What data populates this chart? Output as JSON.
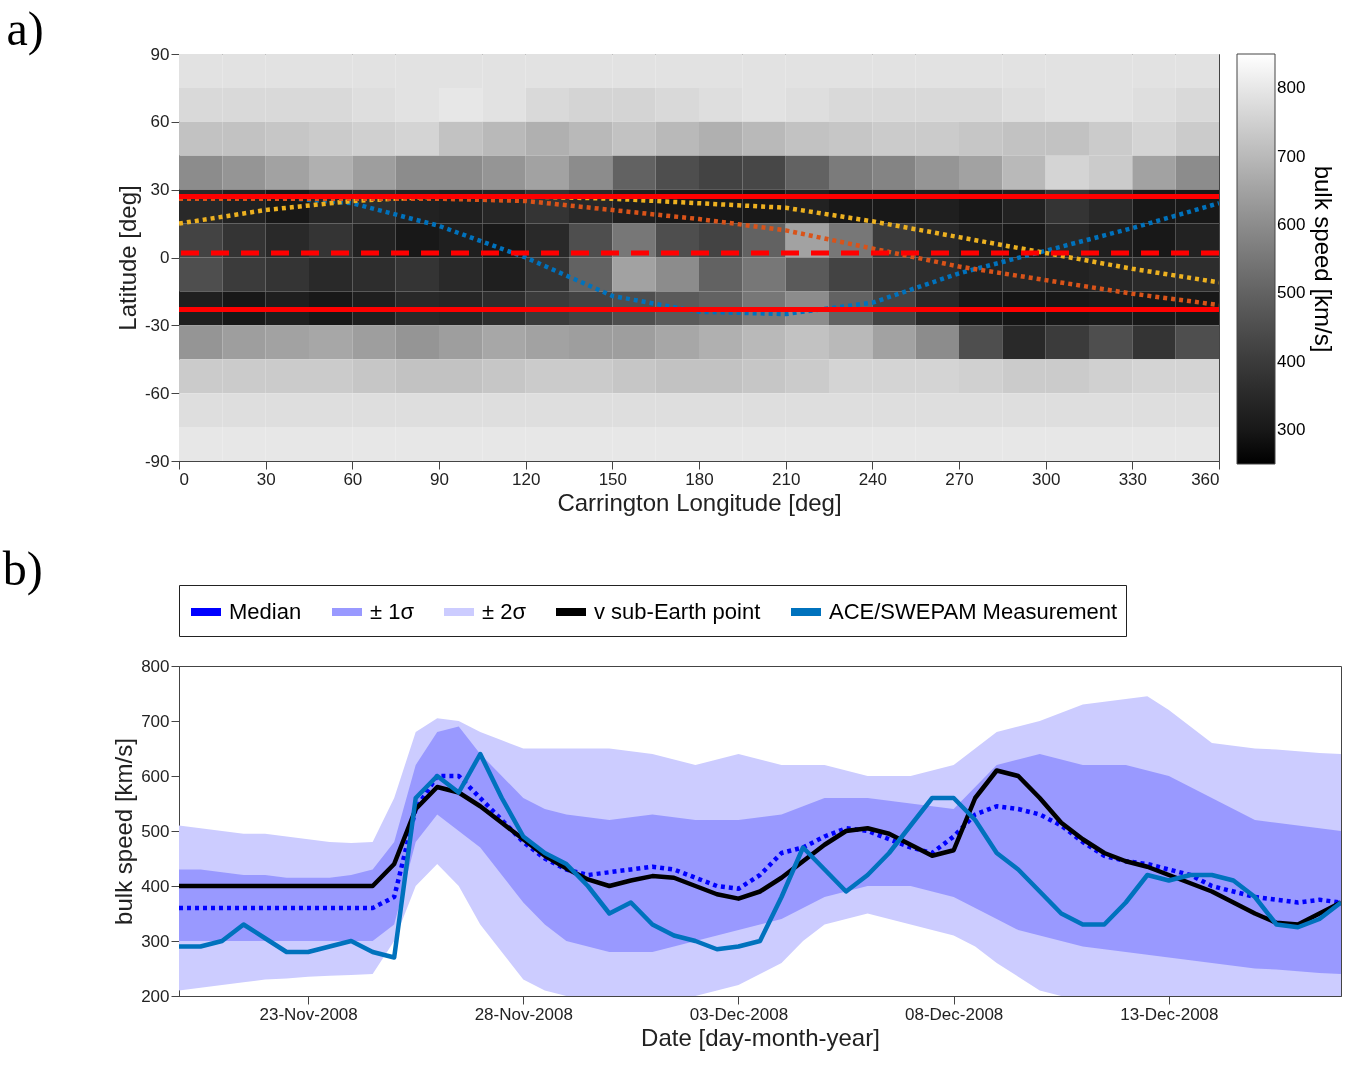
{
  "chart_data": [
    {
      "type": "heatmap",
      "clabel": "bulk speed [km/s]",
      "categories": [
        null,
        null,
        null,
        null,
        null,
        null,
        null,
        null,
        null,
        null,
        null,
        null,
        null,
        null,
        null,
        null,
        null,
        null,
        null,
        null,
        null,
        null,
        null,
        null
      ],
      "y_categories": [
        null,
        null,
        null,
        null,
        null,
        null,
        null,
        null,
        null,
        null,
        null,
        null
      ],
      "cells": [
        [
          790,
          790,
          790,
          790,
          790,
          790,
          790,
          790,
          790,
          790,
          790,
          790,
          790,
          790,
          790,
          790,
          790,
          790,
          790,
          790,
          790,
          790,
          790,
          790
        ],
        [
          770,
          770,
          770,
          770,
          780,
          790,
          800,
          790,
          770,
          760,
          760,
          770,
          780,
          790,
          780,
          770,
          770,
          770,
          770,
          780,
          790,
          790,
          780,
          770
        ],
        [
          720,
          720,
          730,
          740,
          750,
          760,
          720,
          700,
          680,
          700,
          720,
          700,
          680,
          700,
          720,
          730,
          740,
          740,
          730,
          720,
          720,
          740,
          760,
          740
        ],
        [
          600,
          620,
          650,
          680,
          640,
          600,
          600,
          620,
          650,
          600,
          500,
          450,
          420,
          430,
          500,
          560,
          580,
          620,
          650,
          700,
          760,
          740,
          650,
          600
        ],
        [
          350,
          330,
          300,
          340,
          360,
          330,
          320,
          340,
          380,
          350,
          320,
          300,
          300,
          300,
          330,
          300,
          300,
          320,
          300,
          330,
          380,
          350,
          300,
          300
        ],
        [
          420,
          380,
          350,
          380,
          330,
          300,
          320,
          300,
          350,
          450,
          550,
          450,
          420,
          500,
          650,
          550,
          400,
          350,
          320,
          300,
          350,
          320,
          300,
          330
        ],
        [
          450,
          400,
          380,
          350,
          360,
          380,
          350,
          320,
          380,
          500,
          650,
          600,
          500,
          550,
          480,
          420,
          380,
          360,
          330,
          340,
          330,
          340,
          350,
          360
        ],
        [
          320,
          300,
          320,
          300,
          320,
          350,
          340,
          360,
          400,
          420,
          450,
          480,
          500,
          550,
          600,
          500,
          420,
          350,
          300,
          290,
          300,
          310,
          300,
          300
        ],
        [
          620,
          640,
          650,
          660,
          640,
          620,
          640,
          660,
          650,
          640,
          640,
          660,
          680,
          700,
          720,
          700,
          650,
          600,
          450,
          350,
          400,
          450,
          380,
          450
        ],
        [
          740,
          740,
          740,
          740,
          730,
          720,
          720,
          730,
          740,
          740,
          730,
          720,
          720,
          730,
          740,
          760,
          760,
          760,
          750,
          740,
          740,
          750,
          760,
          760
        ],
        [
          780,
          780,
          780,
          780,
          780,
          780,
          780,
          780,
          780,
          780,
          780,
          780,
          780,
          780,
          780,
          780,
          780,
          780,
          780,
          780,
          780,
          780,
          780,
          780
        ],
        [
          800,
          800,
          800,
          800,
          800,
          800,
          800,
          800,
          800,
          800,
          800,
          800,
          800,
          800,
          800,
          800,
          800,
          800,
          800,
          800,
          800,
          800,
          800,
          800
        ]
      ],
      "clim": [
        250,
        850
      ],
      "cticks": [
        300,
        400,
        500,
        600,
        700,
        800
      ]
    },
    {
      "type": "line",
      "title": "a)",
      "xlabel": "Carrington Longitude [deg]",
      "ylabel": "Latitude [deg]",
      "xlim": [
        0,
        360
      ],
      "xticks": [
        0,
        30,
        60,
        90,
        120,
        150,
        180,
        210,
        240,
        270,
        300,
        330,
        360
      ],
      "ylim": [
        -90,
        90
      ],
      "yticks": [
        -90,
        -60,
        -30,
        0,
        30,
        60,
        90
      ],
      "x": [
        0,
        30,
        60,
        90,
        120,
        150,
        180,
        210,
        240,
        270,
        300,
        330,
        360
      ],
      "series": [
        {
          "type": "line",
          "color": "#0072bd",
          "line_style": "dotted",
          "values": [
            27,
            27,
            24,
            14,
            0,
            -17,
            -24,
            -25,
            -20,
            -7,
            3,
            13,
            24
          ]
        },
        {
          "type": "line",
          "color": "#edb120",
          "line_style": "dotted",
          "values": [
            15,
            21,
            25,
            27,
            27,
            26,
            24,
            22,
            16,
            9,
            2,
            -5,
            -11
          ]
        },
        {
          "type": "line",
          "color": "#d95319",
          "line_style": "dotted",
          "values": [
            26,
            26,
            26,
            26,
            25,
            21,
            17,
            12,
            4,
            -4,
            -10,
            -16,
            -21
          ]
        }
      ],
      "ref_lines": [
        {
          "axis": "y",
          "value": 27,
          "color": "#ff0000",
          "line_style": "solid"
        },
        {
          "axis": "y",
          "value": 2,
          "color": "#ff0000",
          "line_style": "dashed"
        },
        {
          "axis": "y",
          "value": -23,
          "color": "#ff0000",
          "line_style": "solid"
        }
      ]
    },
    {
      "type": "line",
      "title": "b)",
      "xlabel": "Date [day-month-year]",
      "ylabel": "bulk speed [km/s]",
      "legend": "top",
      "x": [
        "2008-11-20T00:00",
        "2008-11-20T12:00",
        "2008-11-21T00:00",
        "2008-11-21T12:00",
        "2008-11-22T00:00",
        "2008-11-22T12:00",
        "2008-11-23T00:00",
        "2008-11-23T12:00",
        "2008-11-24T00:00",
        "2008-11-24T12:00",
        "2008-11-25T00:00",
        "2008-11-25T12:00",
        "2008-11-26T00:00",
        "2008-11-26T12:00",
        "2008-11-27T00:00",
        "2008-11-27T12:00",
        "2008-11-28T00:00",
        "2008-11-28T12:00",
        "2008-11-29T00:00",
        "2008-11-29T12:00",
        "2008-11-30T00:00",
        "2008-11-30T12:00",
        "2008-12-01T00:00",
        "2008-12-01T12:00",
        "2008-12-02T00:00",
        "2008-12-02T12:00",
        "2008-12-03T00:00",
        "2008-12-03T12:00",
        "2008-12-04T00:00",
        "2008-12-04T12:00",
        "2008-12-05T00:00",
        "2008-12-05T12:00",
        "2008-12-06T00:00",
        "2008-12-06T12:00",
        "2008-12-07T00:00",
        "2008-12-07T12:00",
        "2008-12-08T00:00",
        "2008-12-08T12:00",
        "2008-12-09T00:00",
        "2008-12-09T12:00",
        "2008-12-10T00:00",
        "2008-12-10T12:00",
        "2008-12-11T00:00",
        "2008-12-11T12:00",
        "2008-12-12T00:00",
        "2008-12-12T12:00",
        "2008-12-13T00:00",
        "2008-12-13T12:00",
        "2008-12-14T00:00",
        "2008-12-14T12:00",
        "2008-12-15T00:00",
        "2008-12-15T12:00",
        "2008-12-16T00:00",
        "2008-12-16T12:00",
        "2008-12-17T00:00"
      ],
      "xlim": [
        "2008-11-20T00:00",
        "2008-12-17T00:00"
      ],
      "xticks": [
        {
          "value": "2008-11-23T00:00",
          "label": "23-Nov-2008"
        },
        {
          "value": "2008-11-28T00:00",
          "label": "28-Nov-2008"
        },
        {
          "value": "2008-12-03T00:00",
          "label": "03-Dec-2008"
        },
        {
          "value": "2008-12-08T00:00",
          "label": "08-Dec-2008"
        },
        {
          "value": "2008-12-13T00:00",
          "label": "13-Dec-2008"
        }
      ],
      "ylim": [
        200,
        800
      ],
      "yticks": [
        200,
        300,
        400,
        500,
        600,
        700,
        800
      ],
      "series": [
        {
          "name": "Median",
          "type": "line",
          "color": "#0000ff",
          "line_style": "dotted",
          "values": [
            360,
            360,
            360,
            360,
            360,
            360,
            360,
            360,
            360,
            360,
            380,
            540,
            600,
            600,
            560,
            520,
            480,
            450,
            430,
            420,
            425,
            430,
            435,
            430,
            415,
            400,
            395,
            420,
            460,
            470,
            490,
            505,
            500,
            485,
            470,
            460,
            490,
            530,
            545,
            540,
            530,
            510,
            480,
            455,
            445,
            440,
            430,
            420,
            400,
            390,
            380,
            375,
            370,
            375,
            370
          ]
        },
        {
          "name": "± 1σ",
          "type": "line",
          "color": "#9999ff",
          "values": [
            null,
            null,
            null,
            null,
            null,
            null,
            null,
            null,
            null,
            null,
            null,
            null,
            null,
            null,
            null,
            null,
            null,
            null,
            null,
            null,
            null,
            null,
            null,
            null,
            null,
            null,
            null,
            null,
            null,
            null,
            null,
            null,
            null,
            null,
            null,
            null,
            null,
            null,
            null,
            null,
            null,
            null,
            null,
            null,
            null,
            null,
            null,
            null,
            null,
            null,
            null,
            null,
            null,
            null,
            null
          ],
          "lower": [
            300,
            300,
            300,
            300,
            300,
            300,
            300,
            300,
            300,
            300,
            330,
            480,
            530,
            500,
            470,
            420,
            370,
            330,
            300,
            290,
            280,
            280,
            280,
            290,
            300,
            310,
            320,
            330,
            340,
            360,
            380,
            390,
            400,
            400,
            400,
            390,
            380,
            360,
            340,
            320,
            310,
            300,
            290,
            285,
            280,
            275,
            270,
            265,
            260,
            255,
            250,
            248,
            245,
            242,
            240
          ],
          "upper": [
            430,
            430,
            425,
            420,
            420,
            415,
            415,
            415,
            420,
            430,
            480,
            620,
            680,
            690,
            640,
            600,
            560,
            540,
            530,
            525,
            520,
            525,
            530,
            525,
            520,
            520,
            520,
            525,
            530,
            545,
            560,
            560,
            560,
            555,
            550,
            545,
            540,
            580,
            620,
            630,
            640,
            630,
            620,
            620,
            620,
            610,
            600,
            580,
            560,
            540,
            520,
            515,
            510,
            505,
            500
          ]
        },
        {
          "name": "± 2σ",
          "type": "line",
          "color": "#ccccff",
          "values": [
            null,
            null,
            null,
            null,
            null,
            null,
            null,
            null,
            null,
            null,
            null,
            null,
            null,
            null,
            null,
            null,
            null,
            null,
            null,
            null,
            null,
            null,
            null,
            null,
            null,
            null,
            null,
            null,
            null,
            null,
            null,
            null,
            null,
            null,
            null,
            null,
            null,
            null,
            null,
            null,
            null,
            null,
            null,
            null,
            null,
            null,
            null,
            null,
            null,
            null,
            null,
            null,
            null,
            null,
            null
          ],
          "lower": [
            210,
            215,
            220,
            225,
            230,
            232,
            235,
            237,
            238,
            240,
            300,
            400,
            440,
            400,
            330,
            280,
            230,
            210,
            200,
            200,
            200,
            200,
            200,
            200,
            200,
            210,
            220,
            240,
            260,
            300,
            330,
            340,
            350,
            340,
            330,
            320,
            310,
            290,
            260,
            235,
            210,
            200,
            200,
            200,
            200,
            200,
            200,
            200,
            200,
            200,
            200,
            200,
            200,
            200,
            200
          ],
          "upper": [
            510,
            505,
            500,
            495,
            495,
            490,
            485,
            480,
            478,
            480,
            560,
            680,
            705,
            700,
            680,
            665,
            650,
            650,
            650,
            650,
            650,
            645,
            640,
            630,
            620,
            630,
            640,
            630,
            620,
            620,
            620,
            610,
            600,
            600,
            600,
            610,
            620,
            650,
            680,
            690,
            700,
            715,
            730,
            735,
            740,
            745,
            720,
            690,
            660,
            655,
            650,
            648,
            645,
            642,
            640
          ]
        },
        {
          "name": "v sub-Earth point",
          "type": "line",
          "color": "#000000",
          "line_style": "solid",
          "values": [
            400,
            400,
            400,
            400,
            400,
            400,
            400,
            400,
            400,
            400,
            440,
            540,
            580,
            570,
            545,
            515,
            485,
            455,
            432,
            412,
            400,
            410,
            418,
            415,
            400,
            385,
            377,
            390,
            415,
            445,
            475,
            500,
            505,
            495,
            475,
            455,
            465,
            560,
            610,
            600,
            560,
            515,
            485,
            460,
            445,
            435,
            420,
            405,
            390,
            370,
            350,
            333,
            330,
            350,
            370
          ]
        },
        {
          "name": "ACE/SWEPAM Measurement",
          "type": "line",
          "color": "#0072bd",
          "line_style": "solid",
          "values": [
            290,
            290,
            300,
            330,
            305,
            280,
            280,
            290,
            300,
            280,
            270,
            560,
            600,
            570,
            640,
            560,
            490,
            460,
            440,
            400,
            350,
            370,
            330,
            310,
            300,
            285,
            290,
            300,
            380,
            470,
            430,
            390,
            420,
            460,
            510,
            560,
            560,
            520,
            460,
            430,
            390,
            350,
            330,
            330,
            370,
            420,
            410,
            420,
            420,
            410,
            380,
            330,
            325,
            340,
            370
          ]
        }
      ]
    }
  ]
}
